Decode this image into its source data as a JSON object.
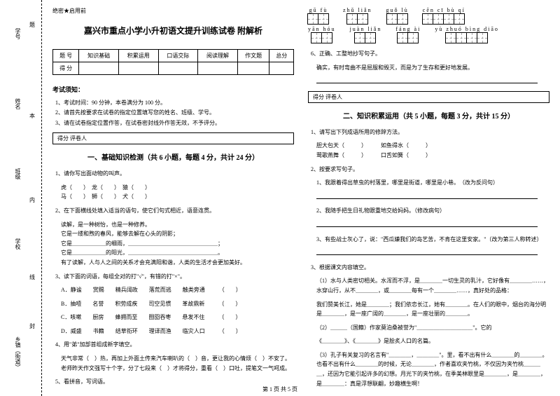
{
  "side": {
    "labels": [
      "学号",
      "姓名",
      "班级",
      "学校",
      "乡镇（街道）"
    ],
    "zones": [
      "题",
      "本",
      "内",
      "线",
      "封"
    ]
  },
  "header_tag": "绝密★启用前",
  "title": "嘉兴市重点小学小升初语文提升训练试卷 附解析",
  "score_table": {
    "headers": [
      "题 号",
      "知识基础",
      "积累运用",
      "口语交际",
      "阅读理解",
      "作文题",
      "总分"
    ],
    "row_label": "得 分"
  },
  "notice": {
    "head": "考试须知：",
    "items": [
      "1、考试时间：90 分钟，本卷满分为 100 分。",
      "2、请首先按要求在试卷的指定位置填写您的姓名、班级、学号。",
      "3、请在试卷指定位置作答，在试卷密封线外作答无效，不予评分。"
    ]
  },
  "scorebox": "得分   评卷人",
  "section1": {
    "title": "一、基础知识检测（共 6 小题，每题 4 分，共计 24 分）",
    "q1": "1、请你写出面动物的叫声。",
    "q1_items": "虎（　　）　龙（　　）　猿（　　）\n马（　　）　狮（　　）　犬（　　）",
    "q2": "2、在下面横线处填入适当的语句，使它们句式相近，语意连贯。",
    "q2_text": "读解，是一种树怡，也是一种修养。\n它是一缕和煦的春风，能够去解在心头的阴影；\n它是＿＿＿＿＿＿的细雨，＿＿＿＿＿＿＿＿＿＿＿＿＿＿＿＿；\n它是＿＿＿＿＿＿的阳光，＿＿＿＿＿＿＿＿＿＿＿＿＿＿＿＿。\n有了读解，人与人之间的关系才会充满阳和谐，人类的生活才会更加美好。",
    "q3": "3、读下面的词语，每组全对的打\"√\"，有错的打\"×\"。",
    "q3_rows": [
      "A．静谧　　赏赐　　精兵阔政　　落荒而逃　　触类旁通　　　（　　）",
      "B．抽噎　　名誉　　积劳成疾　　司空见惯　　革故鼎新　　　（　　）",
      "C．咳嗽　　厨房　　蜂拥而至　　囫囵吞枣　　悬发不住　　　（　　）",
      "D．威盛　　书籍　　结草衔环　　理译而渔　　临灾人口　　　（　　）"
    ],
    "q4": "4、用\"弟\"加部首组成新字填空。",
    "q4_text": "天气非常（　）热，再加上外面土传来汽车喇叭的（　）音，更让我的心情烦（　）不安了。老师昨天作文强写十个字，分了七段来（　）才将得分，重看（　）口吐，提笔文一气呵成。",
    "q5": "5、看拼音，写词语。"
  },
  "pinyin": {
    "row1": [
      {
        "py": "gū fù",
        "boxes": 2
      },
      {
        "py": "zhǔ liǎn",
        "boxes": 2
      },
      {
        "py": "guǒ lù",
        "boxes": 2
      },
      {
        "py": "cēn cī bù qí",
        "boxes": 4
      }
    ],
    "row2": [
      {
        "py": "yān hóu",
        "boxes": 2
      },
      {
        "py": "juàn liǎn",
        "boxes": 2
      },
      {
        "py": "fáng ài",
        "boxes": 2
      },
      {
        "py": "yù zhuó bìng diāo",
        "boxes": 4
      }
    ]
  },
  "q6": "6、正确、工整地抄写句子。",
  "q6_text": "确实，有时弯曲不是屈服和毁灭，而是为了生存和更好地发展。",
  "section2": {
    "title": "二、知识积累运用（共 5 小题，每题 3 分，共计 15 分）",
    "q1": "1、请写出下列成语所用的修辞方法。",
    "q1_items": "胆大包天（　　　）　　　如鱼得水（　　　）\n莺歌燕舞（　　　）　　　口舌如簧（　　　）",
    "q2": "2、按要求写句子。",
    "q2a": "1、我跟着得出草虫的村落里，哪里是街道，哪里是小巷。　（改为反问句）",
    "q2b": "2、我随手把生日礼物跟重地交给妈妈。（修改病句）",
    "q2c": "3、有些战士灰心了，说：\"西瓜嫌我们的岛艺苦，不肯在这里安家。\"（改为第三人称转述）",
    "q3": "3、根据课文内容填空。",
    "q3_1": "（1）水与人类密切相关。水浑而不浮，是＿＿＿＿一切生灵的乳汁，它好像有＿＿＿＿……，水穿山行，从不＿＿＿＿，或＿＿＿＿每有一个＿＿＿＿……，真好处的品格：",
    "q3_2": "我们赞美长江，她是＿＿＿＿；我们依恋长江，她有＿＿＿＿。在人们的眼中，烟台的海分明是＿＿＿＿，是一座广阔的＿＿＿＿，是一座壮丽的＿＿＿＿。",
    "q3_3": "（2）＿＿＿（国籍）作家莫泊桑被誉为\"＿＿＿＿＿＿＿＿＿＿\"。它的",
    "q3_4": "《＿＿＿＿》、《＿＿＿＿》是脍炙人口的名篇。",
    "q3_5": "（3）孔子有关复习的名言有\"＿＿＿＿，＿＿＿＿\"。里，看不出有什么＿＿＿＿的＿＿＿＿。 也看不出有什么＿＿＿＿的时候，无论＿＿＿＿，作者喜欢夹竹桃，不仅因为夹竹桃＿＿＿＿，还因为它能引起许多的幻想。月光下的夹竹桃，在季美林眼里是＿＿＿＿，是＿＿＿＿，是＿＿＿＿：真是浮想联翩，妙趣横生啊！"
  },
  "footer": "第 1 页 共 5 页"
}
